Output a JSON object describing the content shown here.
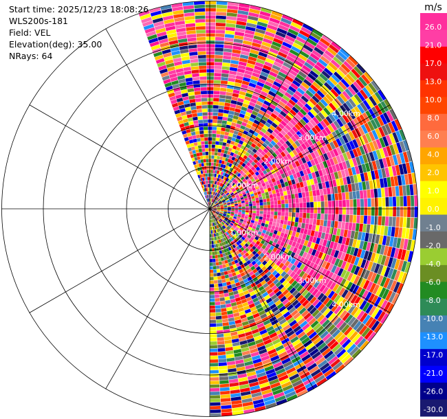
{
  "header": {
    "start_time": "Start time: 2025/12/23 18:08:26",
    "instrument": "WLS200s-181",
    "field": "Field: VEL",
    "elevation": "Elevation(deg): 35.00",
    "nrays": "NRays: 64"
  },
  "chart_data": {
    "type": "heatmap",
    "projection": "polar-ppi",
    "field": "VEL",
    "units": "m/s",
    "sector_deg": [
      -20,
      180
    ],
    "range_rings_km": [
      1.0,
      2.0,
      3.0,
      4.0,
      5.0
    ],
    "ring_labels": [
      "1.00km",
      "2.00km",
      "3.00km",
      "4.00km"
    ],
    "radial_lines_deg": [
      0,
      30,
      60,
      90,
      120,
      150,
      180,
      210,
      240,
      270,
      300,
      330
    ],
    "colorbar": {
      "label": "m/s",
      "ticks": [
        "26.0",
        "21.0",
        "17.0",
        "13.0",
        "10.0",
        "8.0",
        "6.0",
        "4.0",
        "2.0",
        "1.0",
        "0.0",
        "-1.0",
        "-2.0",
        "-4.0",
        "-6.0",
        "-8.0",
        "-10.0",
        "-13.0",
        "-17.0",
        "-21.0",
        "-26.0",
        "-30.0"
      ],
      "colors": [
        "#ff2f9d",
        "#ff3ea5",
        "#ff0000",
        "#ee1010",
        "#ff3300",
        "#ff4500",
        "#ff6a3d",
        "#ff7f50",
        "#ffa500",
        "#ffc400",
        "#ffff00",
        "#fff200",
        "#708090",
        "#696969",
        "#9acd32",
        "#6b8e23",
        "#228b22",
        "#2e8b57",
        "#4682b4",
        "#1e90ff",
        "#0000cd",
        "#0000ff",
        "#00008b",
        "#191970"
      ]
    }
  }
}
